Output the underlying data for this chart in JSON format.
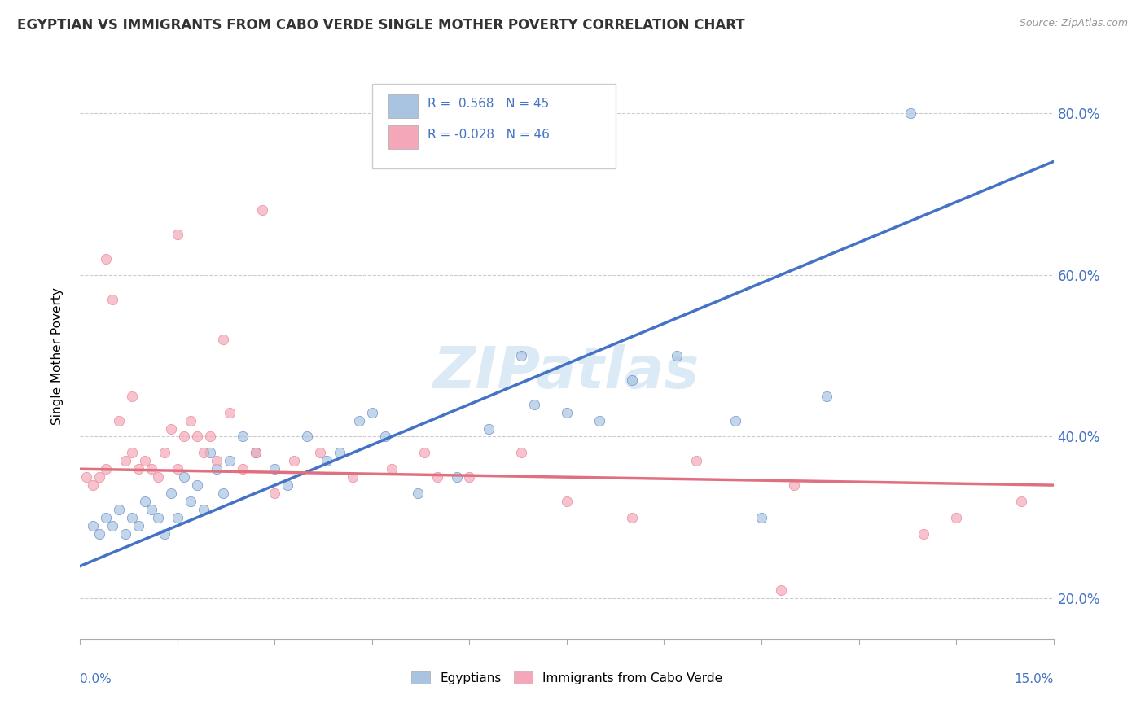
{
  "title": "EGYPTIAN VS IMMIGRANTS FROM CABO VERDE SINGLE MOTHER POVERTY CORRELATION CHART",
  "source": "Source: ZipAtlas.com",
  "ylabel": "Single Mother Poverty",
  "legend_label1": "Egyptians",
  "legend_label2": "Immigrants from Cabo Verde",
  "r1": 0.568,
  "n1": 45,
  "r2": -0.028,
  "n2": 46,
  "watermark": "ZIPatlas",
  "blue_color": "#a8c4e0",
  "pink_color": "#f4a7b9",
  "blue_line_color": "#4472c4",
  "pink_line_color": "#e07080",
  "xmin": 0.0,
  "xmax": 15.0,
  "ymin": 15.0,
  "ymax": 85.0,
  "yticks": [
    20.0,
    40.0,
    60.0,
    80.0
  ],
  "blue_line_y0": 24.0,
  "blue_line_y1": 74.0,
  "pink_line_y0": 36.0,
  "pink_line_y1": 34.0,
  "blue_scatter_x": [
    0.2,
    0.3,
    0.4,
    0.5,
    0.6,
    0.7,
    0.8,
    0.9,
    1.0,
    1.1,
    1.2,
    1.3,
    1.4,
    1.5,
    1.6,
    1.7,
    1.8,
    1.9,
    2.0,
    2.1,
    2.2,
    2.3,
    2.5,
    2.7,
    3.0,
    3.2,
    3.5,
    3.8,
    4.0,
    4.3,
    4.7,
    5.2,
    5.8,
    6.3,
    7.0,
    7.5,
    8.0,
    8.5,
    9.2,
    10.1,
    11.5,
    12.8,
    4.5,
    6.8,
    10.5
  ],
  "blue_scatter_y": [
    29,
    28,
    30,
    29,
    31,
    28,
    30,
    29,
    32,
    31,
    30,
    28,
    33,
    30,
    35,
    32,
    34,
    31,
    38,
    36,
    33,
    37,
    40,
    38,
    36,
    34,
    40,
    37,
    38,
    42,
    40,
    33,
    35,
    41,
    44,
    43,
    42,
    47,
    50,
    42,
    45,
    80,
    43,
    50,
    30
  ],
  "pink_scatter_x": [
    0.1,
    0.2,
    0.3,
    0.4,
    0.5,
    0.6,
    0.7,
    0.8,
    0.9,
    1.0,
    1.1,
    1.2,
    1.3,
    1.4,
    1.5,
    1.6,
    1.7,
    1.8,
    1.9,
    2.0,
    2.1,
    2.2,
    2.3,
    2.5,
    2.7,
    3.0,
    3.3,
    3.7,
    4.2,
    4.8,
    5.3,
    6.0,
    6.8,
    7.5,
    8.5,
    9.5,
    11.0,
    13.0,
    14.5,
    0.4,
    0.8,
    1.5,
    2.8,
    5.5,
    10.8,
    13.5
  ],
  "pink_scatter_y": [
    35,
    34,
    35,
    36,
    57,
    42,
    37,
    38,
    36,
    37,
    36,
    35,
    38,
    41,
    36,
    40,
    42,
    40,
    38,
    40,
    37,
    52,
    43,
    36,
    38,
    33,
    37,
    38,
    35,
    36,
    38,
    35,
    38,
    32,
    30,
    37,
    34,
    28,
    32,
    62,
    45,
    65,
    68,
    35,
    21,
    30
  ]
}
